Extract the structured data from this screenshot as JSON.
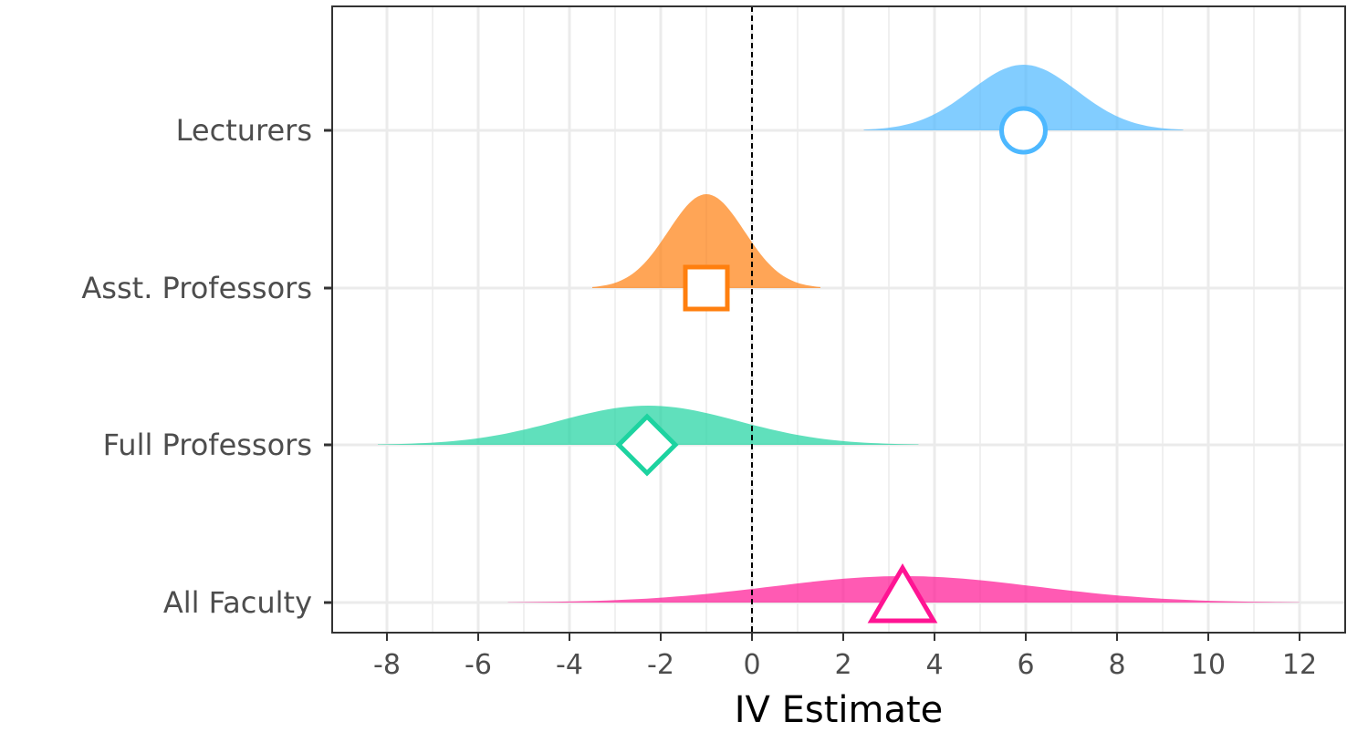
{
  "chart_data": {
    "type": "density_ridge",
    "xlabel": "IV Estimate",
    "ylabel": "",
    "xlim": [
      -9.2,
      13.0
    ],
    "x_ticks": [
      -8,
      -6,
      -4,
      -2,
      0,
      2,
      4,
      6,
      8,
      10,
      12
    ],
    "x_tick_labels": [
      "-8",
      "-6",
      "-4",
      "-2",
      "0",
      "2",
      "4",
      "6",
      "8",
      "10",
      "12"
    ],
    "reference_line": {
      "x": 0,
      "style": "dashed"
    },
    "grid": true,
    "categories": [
      "Lecturers",
      "Asst. Professors",
      "Full Professors",
      "All Faculty"
    ],
    "series": [
      {
        "category": "Lecturers",
        "estimate": 5.95,
        "range": [
          2.45,
          9.45
        ],
        "shape": "circle",
        "color": "#4db8ff"
      },
      {
        "category": "Asst. Professors",
        "estimate": -1.0,
        "range": [
          -3.5,
          1.5
        ],
        "shape": "square",
        "color": "#ff7f0e"
      },
      {
        "category": "Full Professors",
        "estimate": -2.3,
        "range": [
          -8.2,
          3.65
        ],
        "shape": "diamond",
        "color": "#1dd3a0"
      },
      {
        "category": "All Faculty",
        "estimate": 3.3,
        "range": [
          -5.35,
          12.0
        ],
        "shape": "triangle",
        "color": "#ff1493"
      }
    ]
  }
}
